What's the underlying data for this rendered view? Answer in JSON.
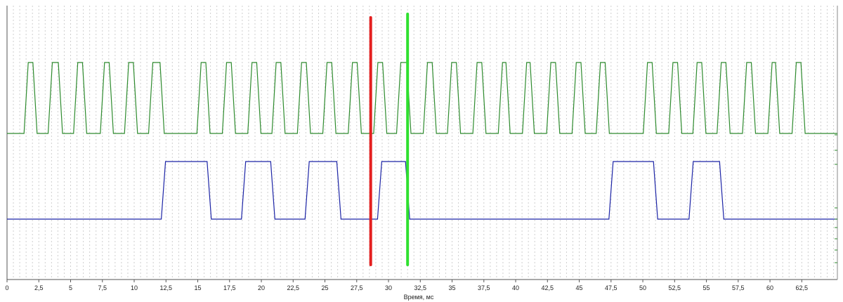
{
  "chart_data": {
    "type": "line",
    "title": "",
    "xlabel": "Время, мс",
    "ylabel": "",
    "xlim": [
      0,
      65.3
    ],
    "ylim": [
      0,
      1
    ],
    "grid": true,
    "x_ticks": [
      {
        "value": 0,
        "label": "0"
      },
      {
        "value": 2.5,
        "label": "2,5"
      },
      {
        "value": 5,
        "label": "5"
      },
      {
        "value": 7.5,
        "label": "7,5"
      },
      {
        "value": 10,
        "label": "10"
      },
      {
        "value": 12.5,
        "label": "12,5"
      },
      {
        "value": 15,
        "label": "15"
      },
      {
        "value": 17.5,
        "label": "17,5"
      },
      {
        "value": 20,
        "label": "20"
      },
      {
        "value": 22.5,
        "label": "22,5"
      },
      {
        "value": 25,
        "label": "25"
      },
      {
        "value": 27.5,
        "label": "27,5"
      },
      {
        "value": 30,
        "label": "30"
      },
      {
        "value": 32.5,
        "label": "32,5"
      },
      {
        "value": 35,
        "label": "35"
      },
      {
        "value": 37.5,
        "label": "37,5"
      },
      {
        "value": 40,
        "label": "40"
      },
      {
        "value": 42.5,
        "label": "42,5"
      },
      {
        "value": 45,
        "label": "45"
      },
      {
        "value": 47.5,
        "label": "47,5"
      },
      {
        "value": 50,
        "label": "50"
      },
      {
        "value": 52.5,
        "label": "52,5"
      },
      {
        "value": 55,
        "label": "55"
      },
      {
        "value": 57.5,
        "label": "57,5"
      },
      {
        "value": 60,
        "label": "60"
      },
      {
        "value": 62.5,
        "label": "62,5"
      }
    ],
    "series": [
      {
        "color": "#2e8b2e",
        "levels": [
          0,
          1
        ],
        "pulses": [
          [
            1.5,
            2.2
          ],
          [
            3.4,
            4.2
          ],
          [
            5.4,
            6.1
          ],
          [
            7.5,
            8.2
          ],
          [
            9.4,
            10.1
          ],
          [
            11.3,
            12.2
          ],
          [
            15.1,
            15.8
          ],
          [
            17.1,
            17.8
          ],
          [
            19.1,
            19.8
          ],
          [
            21.0,
            21.7
          ],
          [
            23.0,
            23.7
          ],
          [
            25.0,
            25.7
          ],
          [
            27.0,
            27.7
          ],
          [
            29.0,
            29.7
          ],
          [
            30.8,
            31.6
          ],
          [
            32.9,
            33.6
          ],
          [
            34.8,
            35.5
          ],
          [
            36.8,
            37.5
          ],
          [
            38.8,
            39.4
          ],
          [
            40.7,
            41.3
          ],
          [
            42.6,
            43.3
          ],
          [
            44.6,
            45.3
          ],
          [
            46.5,
            47.2
          ],
          [
            50.2,
            50.9
          ],
          [
            52.2,
            52.9
          ],
          [
            54.1,
            54.8
          ],
          [
            56.0,
            56.7
          ],
          [
            58.0,
            58.7
          ],
          [
            60.0,
            60.6
          ],
          [
            61.9,
            62.6
          ]
        ]
      },
      {
        "color": "#1c24a6",
        "levels": [
          0,
          1
        ],
        "pulses": [
          [
            12.3,
            15.9
          ],
          [
            18.6,
            20.9
          ],
          [
            23.6,
            26.1
          ],
          [
            29.3,
            31.5
          ],
          [
            47.5,
            51.0
          ],
          [
            53.8,
            56.2
          ]
        ]
      }
    ],
    "markers": [
      {
        "x": 28.6,
        "color": "#e41f1f"
      },
      {
        "x": 31.5,
        "color": "#2fe02f"
      }
    ]
  }
}
